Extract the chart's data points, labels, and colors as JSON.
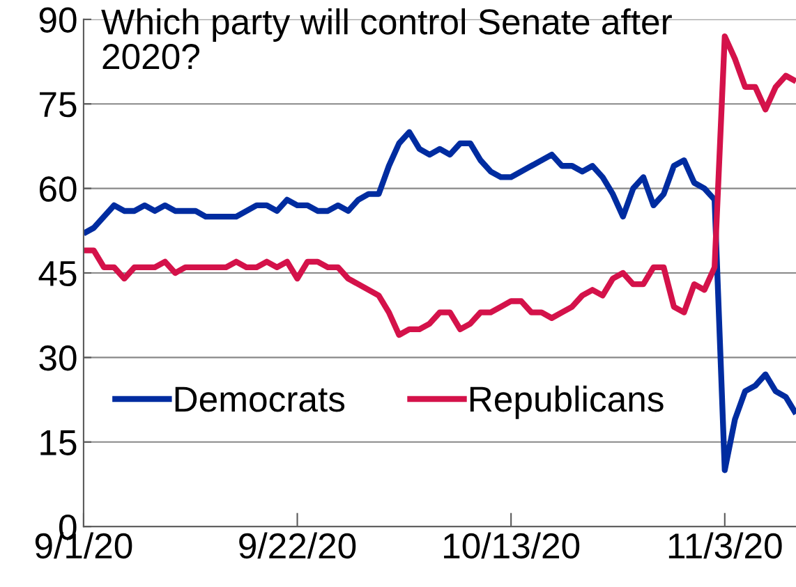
{
  "chart_data": {
    "type": "line",
    "title": "Which party will control Senate after 2020?",
    "ylim": [
      0,
      90
    ],
    "yticks": [
      0,
      15,
      30,
      45,
      60,
      75,
      90
    ],
    "xlim": [
      "2020-09-01",
      "2020-11-10"
    ],
    "xticks": [
      {
        "value": "2020-09-01",
        "label": "9/1/20"
      },
      {
        "value": "2020-09-22",
        "label": "9/22/20"
      },
      {
        "value": "2020-10-13",
        "label": "10/13/20"
      },
      {
        "value": "2020-11-03",
        "label": "11/3/20"
      }
    ],
    "grid": "y",
    "legend": "bottom",
    "line_style": "solid",
    "series": [
      {
        "name": "Democrats",
        "color": "#002ca0",
        "x": [
          "2020-09-01",
          "2020-09-02",
          "2020-09-04",
          "2020-09-05",
          "2020-09-06",
          "2020-09-07",
          "2020-09-08",
          "2020-09-09",
          "2020-09-10",
          "2020-09-12",
          "2020-09-13",
          "2020-09-16",
          "2020-09-18",
          "2020-09-19",
          "2020-09-20",
          "2020-09-21",
          "2020-09-22",
          "2020-09-23",
          "2020-09-24",
          "2020-09-25",
          "2020-09-26",
          "2020-09-27",
          "2020-09-28",
          "2020-09-29",
          "2020-09-30",
          "2020-10-01",
          "2020-10-02",
          "2020-10-03",
          "2020-10-04",
          "2020-10-05",
          "2020-10-06",
          "2020-10-07",
          "2020-10-08",
          "2020-10-09",
          "2020-10-10",
          "2020-10-11",
          "2020-10-12",
          "2020-10-13",
          "2020-10-17",
          "2020-10-18",
          "2020-10-19",
          "2020-10-20",
          "2020-10-21",
          "2020-10-22",
          "2020-10-23",
          "2020-10-24",
          "2020-10-25",
          "2020-10-26",
          "2020-10-27",
          "2020-10-28",
          "2020-10-29",
          "2020-10-30",
          "2020-10-31",
          "2020-11-01",
          "2020-11-02",
          "2020-11-03",
          "2020-11-04",
          "2020-11-05",
          "2020-11-06",
          "2020-11-07",
          "2020-11-08",
          "2020-11-09",
          "2020-11-10"
        ],
        "values": [
          52,
          53,
          57,
          56,
          56,
          57,
          56,
          57,
          56,
          56,
          55,
          55,
          57,
          57,
          56,
          58,
          57,
          57,
          56,
          56,
          57,
          56,
          58,
          59,
          59,
          64,
          68,
          70,
          67,
          66,
          67,
          66,
          68,
          68,
          65,
          63,
          62,
          62,
          66,
          64,
          64,
          63,
          64,
          62,
          59,
          55,
          60,
          62,
          57,
          59,
          64,
          65,
          61,
          60,
          58,
          10,
          19,
          24,
          25,
          27,
          24,
          23,
          20
        ]
      },
      {
        "name": "Republicans",
        "color": "#d4124a",
        "x": [
          "2020-09-01",
          "2020-09-02",
          "2020-09-03",
          "2020-09-04",
          "2020-09-05",
          "2020-09-06",
          "2020-09-08",
          "2020-09-09",
          "2020-09-10",
          "2020-09-11",
          "2020-09-15",
          "2020-09-16",
          "2020-09-17",
          "2020-09-18",
          "2020-09-19",
          "2020-09-20",
          "2020-09-21",
          "2020-09-22",
          "2020-09-23",
          "2020-09-24",
          "2020-09-25",
          "2020-09-26",
          "2020-09-27",
          "2020-09-30",
          "2020-10-01",
          "2020-10-02",
          "2020-10-03",
          "2020-10-04",
          "2020-10-05",
          "2020-10-06",
          "2020-10-07",
          "2020-10-08",
          "2020-10-09",
          "2020-10-10",
          "2020-10-11",
          "2020-10-12",
          "2020-10-13",
          "2020-10-14",
          "2020-10-15",
          "2020-10-16",
          "2020-10-17",
          "2020-10-18",
          "2020-10-19",
          "2020-10-20",
          "2020-10-21",
          "2020-10-22",
          "2020-10-23",
          "2020-10-24",
          "2020-10-25",
          "2020-10-26",
          "2020-10-27",
          "2020-10-28",
          "2020-10-29",
          "2020-10-30",
          "2020-10-31",
          "2020-11-01",
          "2020-11-02",
          "2020-11-03",
          "2020-11-04",
          "2020-11-05",
          "2020-11-06",
          "2020-11-07",
          "2020-11-08",
          "2020-11-09",
          "2020-11-10"
        ],
        "values": [
          49,
          49,
          46,
          46,
          44,
          46,
          46,
          47,
          45,
          46,
          46,
          47,
          46,
          46,
          47,
          46,
          47,
          44,
          47,
          47,
          46,
          46,
          44,
          41,
          38,
          34,
          35,
          35,
          36,
          38,
          38,
          35,
          36,
          38,
          38,
          39,
          40,
          40,
          38,
          38,
          37,
          38,
          39,
          41,
          42,
          41,
          44,
          45,
          43,
          43,
          46,
          46,
          39,
          38,
          43,
          42,
          46,
          87,
          83,
          78,
          78,
          74,
          78,
          80,
          79
        ]
      }
    ]
  }
}
